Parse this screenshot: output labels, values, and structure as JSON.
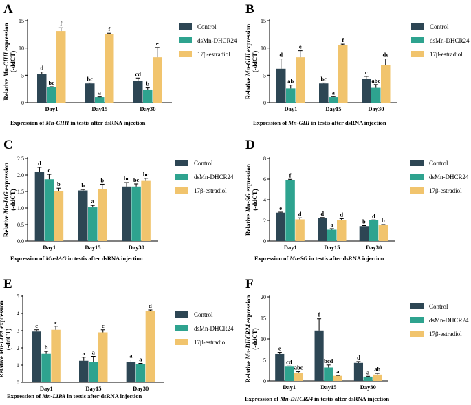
{
  "colors": {
    "Control": "#2d4654",
    "dsMn-DHCR24": "#2ea38f",
    "17β-estradiol": "#f1c46d"
  },
  "legend": [
    "Control",
    "dsMn-DHCR24",
    "17β-estradiol"
  ],
  "chart_data": [
    {
      "panel": "A",
      "type": "bar",
      "categories": [
        "Day1",
        "Day15",
        "Day30"
      ],
      "ylabel_prefix": "Relative ",
      "gene": "Mn-CHH",
      "ylabel_suffix": " expression",
      "ylabel_line2": "(-ddCT)",
      "ylim": [
        0,
        15
      ],
      "yticks": [
        0,
        5,
        10,
        15
      ],
      "caption": {
        "pre": "Expression of ",
        "gene": "Mn-CHH",
        "post": " in testis after dsRNA injection"
      },
      "series": [
        {
          "name": "Control",
          "values": [
            5.2,
            3.5,
            4.0
          ],
          "errors": [
            0.4,
            0.1,
            0.5
          ],
          "letters": [
            "d",
            "bc",
            "cd"
          ]
        },
        {
          "name": "dsMn-DHCR24",
          "values": [
            2.8,
            1.0,
            2.4
          ],
          "errors": [
            0.1,
            0.05,
            0.3
          ],
          "letters": [
            "bc",
            "a",
            "b"
          ]
        },
        {
          "name": "17β-estradiol",
          "values": [
            13.1,
            12.5,
            8.3
          ],
          "errors": [
            0.6,
            0.2,
            1.8
          ],
          "letters": [
            "f",
            "f",
            "e"
          ]
        }
      ]
    },
    {
      "panel": "B",
      "type": "bar",
      "categories": [
        "Day1",
        "Day15",
        "Day30"
      ],
      "ylabel_prefix": "Relative ",
      "gene": "Mn-GIH",
      "ylabel_suffix": " expression",
      "ylabel_line2": "(-ddCT)",
      "ylim": [
        0,
        15
      ],
      "yticks": [
        0,
        5,
        10,
        15
      ],
      "caption": {
        "pre": "Expression of ",
        "gene": "Mn-GIH",
        "post": " in testis after dsRNA injection"
      },
      "series": [
        {
          "name": "Control",
          "values": [
            6.2,
            3.5,
            4.3
          ],
          "errors": [
            1.8,
            0.1,
            0.5
          ],
          "letters": [
            "d",
            "bc",
            "c"
          ]
        },
        {
          "name": "dsMn-DHCR24",
          "values": [
            2.6,
            1.0,
            2.7
          ],
          "errors": [
            0.6,
            0.1,
            0.6
          ],
          "letters": [
            "ab",
            "a",
            "abc"
          ]
        },
        {
          "name": "17β-estradiol",
          "values": [
            8.3,
            10.5,
            6.9
          ],
          "errors": [
            1.2,
            0.2,
            1.1
          ],
          "letters": [
            "e",
            "f",
            "de"
          ]
        }
      ]
    },
    {
      "panel": "C",
      "type": "bar",
      "categories": [
        "Day1",
        "Day15",
        "Day30"
      ],
      "ylabel_prefix": "Relative ",
      "gene": "Mn-IAG",
      "ylabel_suffix": " expression",
      "ylabel_line2": "(-ddCT)",
      "ylim": [
        0,
        2.5
      ],
      "yticks": [
        0,
        0.5,
        1.0,
        1.5,
        2.0,
        2.5
      ],
      "caption": {
        "pre": "Expression of ",
        "gene": "Mn-IAG",
        "post": " in testis after dsRNA injection"
      },
      "series": [
        {
          "name": "Control",
          "values": [
            2.1,
            1.53,
            1.65
          ],
          "errors": [
            0.13,
            0.03,
            0.12
          ],
          "letters": [
            "d",
            "b",
            "bc"
          ]
        },
        {
          "name": "dsMn-DHCR24",
          "values": [
            1.87,
            1.02,
            1.65
          ],
          "errors": [
            0.15,
            0.06,
            0.08
          ],
          "letters": [
            "c",
            "a",
            "bc"
          ]
        },
        {
          "name": "17β-estradiol",
          "values": [
            1.52,
            1.57,
            1.82
          ],
          "errors": [
            0.08,
            0.15,
            0.08
          ],
          "letters": [
            "b",
            "b",
            "bc"
          ]
        }
      ]
    },
    {
      "panel": "D",
      "type": "bar",
      "categories": [
        "Day1",
        "Day15",
        "Day30"
      ],
      "ylabel_prefix": "Relative ",
      "gene": "Mn-SG",
      "ylabel_suffix": " expression",
      "ylabel_line2": "(-ddCT)",
      "ylim": [
        0,
        8
      ],
      "yticks": [
        0,
        2,
        4,
        6,
        8
      ],
      "caption": {
        "pre": "Expression of ",
        "gene": "Mn-SG",
        "post": " in testis after dsRNA injection"
      },
      "series": [
        {
          "name": "Control",
          "values": [
            2.75,
            2.2,
            1.45
          ],
          "errors": [
            0.05,
            0.08,
            0.05
          ],
          "letters": [
            "e",
            "d",
            "b"
          ]
        },
        {
          "name": "dsMn-DHCR24",
          "values": [
            5.9,
            1.1,
            2.0
          ],
          "errors": [
            0.08,
            0.1,
            0.05
          ],
          "letters": [
            "f",
            "a",
            "d"
          ]
        },
        {
          "name": "17β-estradiol",
          "values": [
            2.1,
            2.05,
            1.55
          ],
          "errors": [
            0.15,
            0.12,
            0.05
          ],
          "letters": [
            "d",
            "d",
            "b"
          ]
        }
      ]
    },
    {
      "panel": "E",
      "type": "bar",
      "categories": [
        "Day1",
        "Day15",
        "Day30"
      ],
      "ylabel_prefix": "Relative ",
      "gene": "Mn-LIPA",
      "ylabel_suffix": " expression",
      "ylabel_line2": "(-ddCT)",
      "ylim": [
        0,
        5
      ],
      "yticks": [
        0,
        1,
        2,
        3,
        4,
        5
      ],
      "caption": {
        "pre": "Expression of ",
        "gene": "Mn-LIPA",
        "post": " in testis after dsRNA injection"
      },
      "series": [
        {
          "name": "Control",
          "values": [
            2.95,
            1.25,
            1.2
          ],
          "errors": [
            0.1,
            0.2,
            0.1
          ],
          "letters": [
            "c",
            "a",
            "a"
          ]
        },
        {
          "name": "dsMn-DHCR24",
          "values": [
            1.65,
            1.2,
            1.05
          ],
          "errors": [
            0.15,
            0.3,
            0.05
          ],
          "letters": [
            "b",
            "a",
            "a"
          ]
        },
        {
          "name": "17β-estradiol",
          "values": [
            3.05,
            2.9,
            4.15
          ],
          "errors": [
            0.2,
            0.15,
            0.05
          ],
          "letters": [
            "c",
            "c",
            "d"
          ]
        }
      ]
    },
    {
      "panel": "F",
      "type": "bar",
      "categories": [
        "Day1",
        "Day15",
        "Day30"
      ],
      "ylabel_prefix": "Relative ",
      "gene": "Mn-DHCR24",
      "ylabel_suffix": " expression",
      "ylabel_line2": "(-ddCT)",
      "ylim": [
        0,
        20
      ],
      "yticks": [
        0,
        5,
        10,
        15,
        20
      ],
      "caption": {
        "pre": "Expression of ",
        "gene": "Mn-DHCR24",
        "post": " in testis after dsRNA injection"
      },
      "series": [
        {
          "name": "Control",
          "values": [
            6.4,
            12.0,
            4.3
          ],
          "errors": [
            0.4,
            2.8,
            0.3
          ],
          "letters": [
            "e",
            "f",
            "d"
          ]
        },
        {
          "name": "dsMn-DHCR24",
          "values": [
            3.4,
            3.2,
            1.0
          ],
          "errors": [
            0.15,
            0.6,
            0.1
          ],
          "letters": [
            "cd",
            "bcd",
            "a"
          ]
        },
        {
          "name": "17β-estradiol",
          "values": [
            1.9,
            1.2,
            1.5
          ],
          "errors": [
            0.3,
            0.1,
            0.3
          ],
          "letters": [
            "abc",
            "a",
            "ab"
          ]
        }
      ]
    }
  ]
}
